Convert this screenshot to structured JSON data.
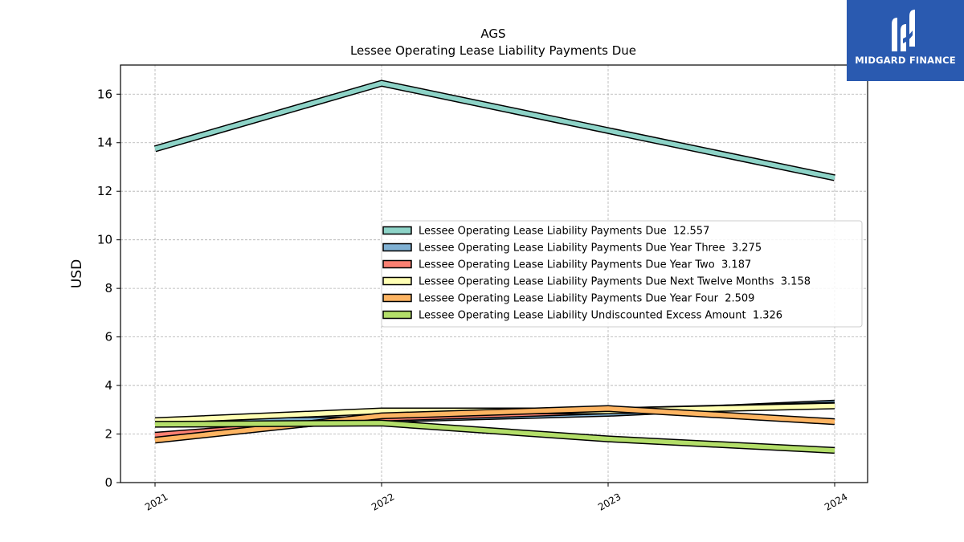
{
  "chart_data": {
    "type": "line",
    "title": "AGS",
    "subtitle": "Lessee Operating Lease Liability Payments Due",
    "ylabel": "USD",
    "xlabel": "",
    "x": [
      "2021",
      "2022",
      "2023",
      "2024"
    ],
    "ylim": [
      0,
      17.2
    ],
    "yticks": [
      0,
      2,
      4,
      6,
      8,
      10,
      12,
      14,
      16
    ],
    "grid": true,
    "legend_position": "center-right",
    "series": [
      {
        "name": "Lessee Operating Lease Liability Payments Due",
        "legend": "Lessee Operating Lease Liability Payments Due  12.557",
        "color": "#8dd3c7",
        "values": [
          13.75,
          16.45,
          14.5,
          12.557
        ]
      },
      {
        "name": "Lessee Operating Lease Liability Payments Due Year Three",
        "legend": "Lessee Operating Lease Liability Payments Due Year Three  3.275",
        "color": "#80b1d3",
        "values": [
          2.5,
          2.6,
          2.85,
          3.275
        ]
      },
      {
        "name": "Lessee Operating Lease Liability Payments Due Year Two",
        "legend": "Lessee Operating Lease Liability Payments Due Year Two  3.187",
        "color": "#fb8072",
        "values": [
          1.95,
          2.65,
          2.95,
          3.187
        ]
      },
      {
        "name": "Lessee Operating Lease Liability Payments Due Next Twelve Months",
        "legend": "Lessee Operating Lease Liability Payments Due Next Twelve Months  3.158",
        "color": "#ffffb3",
        "values": [
          2.55,
          2.95,
          2.95,
          3.158
        ]
      },
      {
        "name": "Lessee Operating Lease Liability Payments Due Year Four",
        "legend": "Lessee Operating Lease Liability Payments Due Year Four  2.509",
        "color": "#fdb462",
        "values": [
          1.75,
          2.75,
          3.05,
          2.509
        ]
      },
      {
        "name": "Lessee Operating Lease Liability Undiscounted Excess Amount",
        "legend": "Lessee Operating Lease Liability Undiscounted Excess Amount  1.326",
        "color": "#b3de69",
        "values": [
          2.4,
          2.45,
          1.8,
          1.326
        ]
      }
    ]
  },
  "logo": {
    "text": "MIDGARD FINANCE",
    "color": "#2a5ab0"
  }
}
